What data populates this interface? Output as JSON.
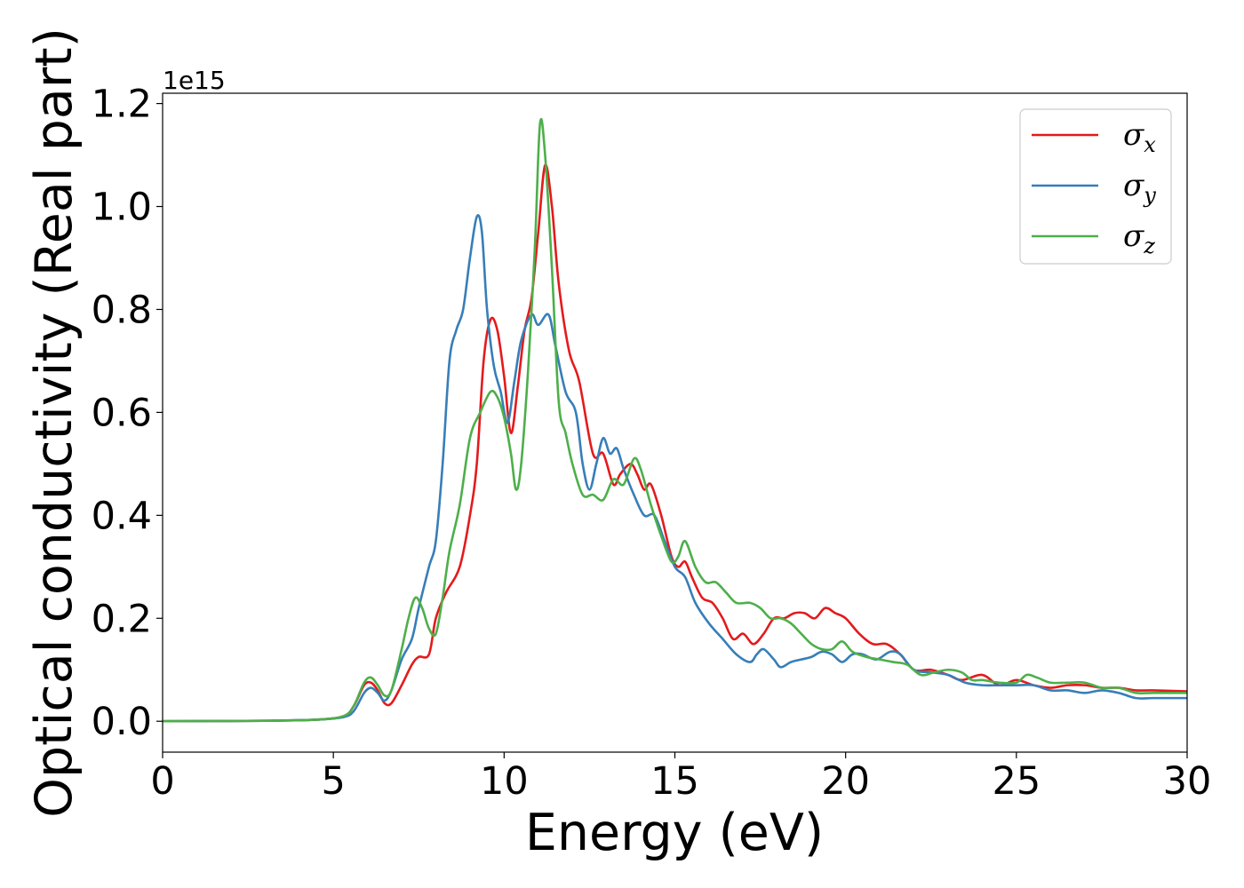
{
  "chart_data": {
    "type": "line",
    "title": "",
    "xlabel": "Energy (eV)",
    "ylabel": "Optical conductivity (Real part)",
    "y_offset_label": "1e15",
    "xlim": [
      0,
      30
    ],
    "ylim": [
      -0.06,
      1.22
    ],
    "x_ticks": [
      0,
      5,
      10,
      15,
      20,
      25,
      30
    ],
    "x_tick_labels": [
      "0",
      "5",
      "10",
      "15",
      "20",
      "25",
      "30"
    ],
    "y_ticks": [
      0.0,
      0.2,
      0.4,
      0.6,
      0.8,
      1.0,
      1.2
    ],
    "y_tick_labels": [
      "0.0",
      "0.2",
      "0.4",
      "0.6",
      "0.8",
      "1.0",
      "1.2"
    ],
    "grid": false,
    "legend_position": "top-right",
    "series": [
      {
        "name": "σx",
        "legend_symbol": "σ",
        "legend_subscript": "x",
        "color": "#e41a1c",
        "points": [
          [
            0,
            0.0
          ],
          [
            3,
            0.001
          ],
          [
            4.5,
            0.003
          ],
          [
            5.3,
            0.01
          ],
          [
            5.6,
            0.03
          ],
          [
            5.9,
            0.07
          ],
          [
            6.1,
            0.075
          ],
          [
            6.3,
            0.06
          ],
          [
            6.5,
            0.035
          ],
          [
            6.7,
            0.035
          ],
          [
            7.0,
            0.07
          ],
          [
            7.3,
            0.11
          ],
          [
            7.5,
            0.125
          ],
          [
            7.8,
            0.13
          ],
          [
            8.0,
            0.2
          ],
          [
            8.3,
            0.25
          ],
          [
            8.7,
            0.3
          ],
          [
            9.0,
            0.4
          ],
          [
            9.2,
            0.5
          ],
          [
            9.4,
            0.7
          ],
          [
            9.6,
            0.78
          ],
          [
            9.8,
            0.76
          ],
          [
            10.0,
            0.67
          ],
          [
            10.2,
            0.56
          ],
          [
            10.4,
            0.65
          ],
          [
            10.6,
            0.76
          ],
          [
            10.8,
            0.82
          ],
          [
            11.0,
            0.95
          ],
          [
            11.2,
            1.08
          ],
          [
            11.4,
            1.0
          ],
          [
            11.6,
            0.85
          ],
          [
            11.9,
            0.72
          ],
          [
            12.2,
            0.66
          ],
          [
            12.6,
            0.52
          ],
          [
            12.9,
            0.52
          ],
          [
            13.2,
            0.46
          ],
          [
            13.4,
            0.48
          ],
          [
            13.7,
            0.5
          ],
          [
            13.9,
            0.48
          ],
          [
            14.1,
            0.45
          ],
          [
            14.3,
            0.46
          ],
          [
            14.6,
            0.4
          ],
          [
            14.9,
            0.32
          ],
          [
            15.1,
            0.3
          ],
          [
            15.3,
            0.31
          ],
          [
            15.5,
            0.28
          ],
          [
            15.8,
            0.24
          ],
          [
            16.1,
            0.23
          ],
          [
            16.4,
            0.2
          ],
          [
            16.7,
            0.16
          ],
          [
            17.0,
            0.17
          ],
          [
            17.3,
            0.15
          ],
          [
            17.6,
            0.17
          ],
          [
            17.9,
            0.2
          ],
          [
            18.2,
            0.2
          ],
          [
            18.5,
            0.21
          ],
          [
            18.8,
            0.21
          ],
          [
            19.1,
            0.2
          ],
          [
            19.4,
            0.22
          ],
          [
            19.7,
            0.21
          ],
          [
            20.0,
            0.2
          ],
          [
            20.4,
            0.17
          ],
          [
            20.8,
            0.15
          ],
          [
            21.2,
            0.15
          ],
          [
            21.6,
            0.13
          ],
          [
            22.0,
            0.1
          ],
          [
            22.5,
            0.1
          ],
          [
            23.0,
            0.09
          ],
          [
            23.4,
            0.08
          ],
          [
            24.0,
            0.09
          ],
          [
            24.5,
            0.07
          ],
          [
            25.0,
            0.08
          ],
          [
            25.5,
            0.07
          ],
          [
            26.0,
            0.065
          ],
          [
            26.5,
            0.07
          ],
          [
            27.0,
            0.07
          ],
          [
            27.5,
            0.065
          ],
          [
            28.0,
            0.065
          ],
          [
            28.5,
            0.06
          ],
          [
            29.0,
            0.06
          ],
          [
            30.0,
            0.058
          ]
        ]
      },
      {
        "name": "σy",
        "legend_symbol": "σ",
        "legend_subscript": "y",
        "color": "#377eb8",
        "points": [
          [
            0,
            0.0
          ],
          [
            3,
            0.001
          ],
          [
            4.5,
            0.003
          ],
          [
            5.3,
            0.008
          ],
          [
            5.6,
            0.02
          ],
          [
            5.9,
            0.055
          ],
          [
            6.1,
            0.065
          ],
          [
            6.3,
            0.055
          ],
          [
            6.5,
            0.04
          ],
          [
            6.7,
            0.06
          ],
          [
            7.0,
            0.12
          ],
          [
            7.3,
            0.16
          ],
          [
            7.5,
            0.22
          ],
          [
            7.8,
            0.3
          ],
          [
            8.0,
            0.35
          ],
          [
            8.2,
            0.5
          ],
          [
            8.4,
            0.7
          ],
          [
            8.6,
            0.76
          ],
          [
            8.8,
            0.8
          ],
          [
            9.0,
            0.9
          ],
          [
            9.2,
            0.98
          ],
          [
            9.35,
            0.95
          ],
          [
            9.5,
            0.8
          ],
          [
            9.7,
            0.69
          ],
          [
            9.9,
            0.64
          ],
          [
            10.1,
            0.58
          ],
          [
            10.3,
            0.66
          ],
          [
            10.5,
            0.74
          ],
          [
            10.8,
            0.79
          ],
          [
            11.0,
            0.77
          ],
          [
            11.3,
            0.79
          ],
          [
            11.5,
            0.73
          ],
          [
            11.8,
            0.64
          ],
          [
            12.1,
            0.6
          ],
          [
            12.3,
            0.5
          ],
          [
            12.5,
            0.45
          ],
          [
            12.7,
            0.5
          ],
          [
            12.9,
            0.55
          ],
          [
            13.1,
            0.52
          ],
          [
            13.3,
            0.53
          ],
          [
            13.5,
            0.49
          ],
          [
            13.8,
            0.44
          ],
          [
            14.1,
            0.4
          ],
          [
            14.4,
            0.4
          ],
          [
            14.7,
            0.35
          ],
          [
            15.0,
            0.3
          ],
          [
            15.3,
            0.28
          ],
          [
            15.6,
            0.23
          ],
          [
            16.0,
            0.19
          ],
          [
            16.4,
            0.16
          ],
          [
            16.8,
            0.13
          ],
          [
            17.2,
            0.115
          ],
          [
            17.4,
            0.13
          ],
          [
            17.6,
            0.14
          ],
          [
            17.9,
            0.12
          ],
          [
            18.1,
            0.105
          ],
          [
            18.4,
            0.115
          ],
          [
            18.7,
            0.12
          ],
          [
            19.0,
            0.125
          ],
          [
            19.3,
            0.135
          ],
          [
            19.6,
            0.13
          ],
          [
            19.9,
            0.115
          ],
          [
            20.2,
            0.13
          ],
          [
            20.5,
            0.13
          ],
          [
            20.9,
            0.12
          ],
          [
            21.3,
            0.135
          ],
          [
            21.6,
            0.13
          ],
          [
            22.0,
            0.1
          ],
          [
            22.5,
            0.095
          ],
          [
            23.0,
            0.09
          ],
          [
            23.5,
            0.075
          ],
          [
            24.0,
            0.07
          ],
          [
            24.5,
            0.07
          ],
          [
            25.0,
            0.07
          ],
          [
            25.5,
            0.07
          ],
          [
            26.0,
            0.06
          ],
          [
            26.5,
            0.06
          ],
          [
            27.0,
            0.055
          ],
          [
            27.5,
            0.06
          ],
          [
            28.0,
            0.055
          ],
          [
            28.5,
            0.045
          ],
          [
            29.0,
            0.045
          ],
          [
            30.0,
            0.045
          ]
        ]
      },
      {
        "name": "σz",
        "legend_symbol": "σ",
        "legend_subscript": "z",
        "color": "#4daf4a",
        "points": [
          [
            0,
            0.0
          ],
          [
            3,
            0.001
          ],
          [
            4.5,
            0.003
          ],
          [
            5.3,
            0.01
          ],
          [
            5.6,
            0.03
          ],
          [
            5.9,
            0.075
          ],
          [
            6.1,
            0.085
          ],
          [
            6.3,
            0.07
          ],
          [
            6.5,
            0.05
          ],
          [
            6.7,
            0.06
          ],
          [
            7.0,
            0.14
          ],
          [
            7.2,
            0.2
          ],
          [
            7.4,
            0.24
          ],
          [
            7.6,
            0.22
          ],
          [
            7.8,
            0.18
          ],
          [
            8.0,
            0.17
          ],
          [
            8.2,
            0.24
          ],
          [
            8.4,
            0.33
          ],
          [
            8.7,
            0.42
          ],
          [
            9.0,
            0.55
          ],
          [
            9.3,
            0.6
          ],
          [
            9.6,
            0.64
          ],
          [
            9.8,
            0.63
          ],
          [
            10.0,
            0.59
          ],
          [
            10.2,
            0.52
          ],
          [
            10.35,
            0.45
          ],
          [
            10.5,
            0.5
          ],
          [
            10.7,
            0.68
          ],
          [
            10.9,
            0.92
          ],
          [
            11.05,
            1.16
          ],
          [
            11.2,
            1.1
          ],
          [
            11.4,
            0.88
          ],
          [
            11.6,
            0.62
          ],
          [
            11.8,
            0.56
          ],
          [
            12.0,
            0.5
          ],
          [
            12.3,
            0.44
          ],
          [
            12.6,
            0.44
          ],
          [
            12.9,
            0.43
          ],
          [
            13.2,
            0.47
          ],
          [
            13.5,
            0.46
          ],
          [
            13.8,
            0.51
          ],
          [
            14.0,
            0.49
          ],
          [
            14.3,
            0.42
          ],
          [
            14.6,
            0.36
          ],
          [
            14.9,
            0.31
          ],
          [
            15.1,
            0.32
          ],
          [
            15.3,
            0.35
          ],
          [
            15.6,
            0.3
          ],
          [
            15.9,
            0.27
          ],
          [
            16.2,
            0.27
          ],
          [
            16.5,
            0.25
          ],
          [
            16.8,
            0.23
          ],
          [
            17.2,
            0.23
          ],
          [
            17.5,
            0.22
          ],
          [
            17.8,
            0.2
          ],
          [
            18.1,
            0.2
          ],
          [
            18.4,
            0.19
          ],
          [
            18.7,
            0.17
          ],
          [
            19.0,
            0.15
          ],
          [
            19.3,
            0.14
          ],
          [
            19.6,
            0.14
          ],
          [
            19.9,
            0.155
          ],
          [
            20.2,
            0.135
          ],
          [
            20.6,
            0.125
          ],
          [
            21.0,
            0.12
          ],
          [
            21.4,
            0.115
          ],
          [
            21.8,
            0.11
          ],
          [
            22.2,
            0.09
          ],
          [
            22.6,
            0.095
          ],
          [
            23.0,
            0.1
          ],
          [
            23.4,
            0.095
          ],
          [
            23.7,
            0.08
          ],
          [
            24.0,
            0.08
          ],
          [
            24.5,
            0.075
          ],
          [
            25.0,
            0.075
          ],
          [
            25.3,
            0.09
          ],
          [
            25.6,
            0.085
          ],
          [
            26.0,
            0.075
          ],
          [
            26.5,
            0.075
          ],
          [
            27.0,
            0.075
          ],
          [
            27.5,
            0.065
          ],
          [
            28.0,
            0.065
          ],
          [
            28.5,
            0.055
          ],
          [
            29.0,
            0.055
          ],
          [
            30.0,
            0.055
          ]
        ]
      }
    ]
  }
}
